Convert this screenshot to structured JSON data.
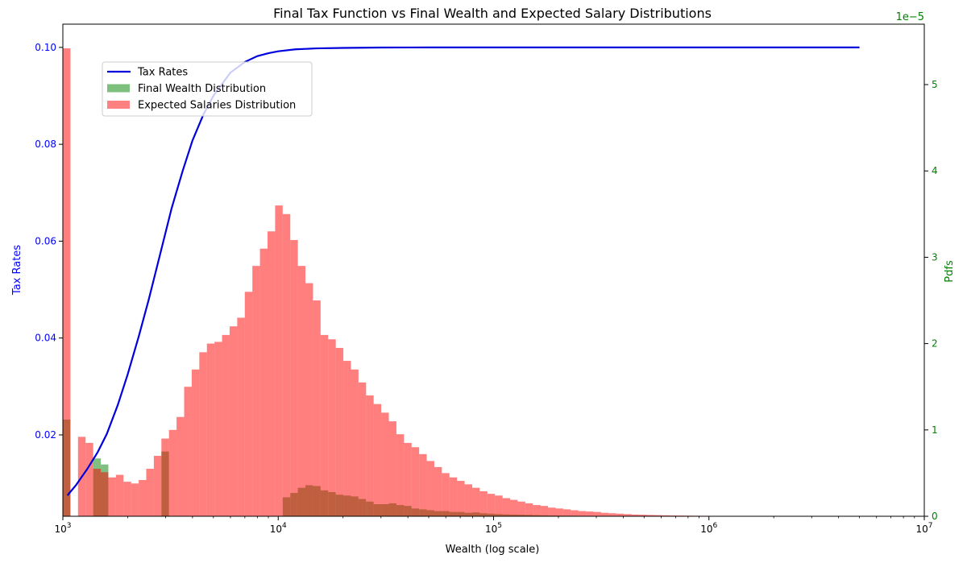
{
  "chart_data": {
    "type": "histogram-with-line",
    "title": "Final Tax Function vs Final Wealth and Expected Salary Distributions",
    "xlabel": "Wealth (log scale)",
    "ylabel_left": "Tax Rates",
    "ylabel_right": "Pdfs",
    "right_axis_multiplier": "1e−5",
    "x_scale": "log",
    "xlim": [
      1000,
      10000000
    ],
    "ylim_left": [
      0.0032,
      0.1048
    ],
    "ylim_right": [
      0,
      5.7
    ],
    "x_ticks": [
      {
        "value": 1000,
        "mantissa": "10",
        "exp": "3"
      },
      {
        "value": 10000,
        "mantissa": "10",
        "exp": "4"
      },
      {
        "value": 100000,
        "mantissa": "10",
        "exp": "5"
      },
      {
        "value": 1000000,
        "mantissa": "10",
        "exp": "6"
      },
      {
        "value": 10000000,
        "mantissa": "10",
        "exp": "7"
      }
    ],
    "y_left_ticks": [
      "0.02",
      "0.04",
      "0.06",
      "0.08",
      "0.10"
    ],
    "y_right_ticks": [
      "0",
      "1",
      "2",
      "3",
      "4",
      "5"
    ],
    "legend": {
      "placement": "upper-left",
      "items": [
        {
          "label": "Tax Rates",
          "kind": "line",
          "color": "#0000dd"
        },
        {
          "label": "Final Wealth Distribution",
          "kind": "patch",
          "color": "#7dbf7d"
        },
        {
          "label": "Expected Salaries Distribution",
          "kind": "patch",
          "color": "#ff8080"
        }
      ]
    },
    "colors": {
      "tax_line": "#0000dd",
      "wealth_fill": "rgba(0,128,0,0.5)",
      "salary_fill": "rgba(255,0,0,0.5)",
      "left_axis": "#0000ff",
      "right_axis": "#008000"
    },
    "tax_rates": {
      "name": "Tax Rates",
      "points": [
        [
          1050,
          0.0075
        ],
        [
          1150,
          0.0096
        ],
        [
          1300,
          0.013
        ],
        [
          1450,
          0.0164
        ],
        [
          1600,
          0.0202
        ],
        [
          1800,
          0.0262
        ],
        [
          2000,
          0.0325
        ],
        [
          2250,
          0.0403
        ],
        [
          2500,
          0.0478
        ],
        [
          2800,
          0.0565
        ],
        [
          3200,
          0.0668
        ],
        [
          3600,
          0.0745
        ],
        [
          4000,
          0.0808
        ],
        [
          4500,
          0.0862
        ],
        [
          5000,
          0.09
        ],
        [
          6000,
          0.0948
        ],
        [
          7000,
          0.097
        ],
        [
          8000,
          0.0982
        ],
        [
          9000,
          0.0988
        ],
        [
          10000,
          0.0992
        ],
        [
          12000,
          0.0996
        ],
        [
          15000,
          0.0998
        ],
        [
          20000,
          0.0999
        ],
        [
          30000,
          0.09998
        ],
        [
          50000,
          0.1
        ],
        [
          100000,
          0.1
        ],
        [
          1000000,
          0.1
        ],
        [
          5000000,
          0.1
        ]
      ]
    },
    "bins": {
      "count": 100,
      "log10_start": 3.0,
      "log10_end": 6.52,
      "wealth_pdf": [
        1.12,
        0,
        0,
        0,
        0.67,
        0.6,
        0,
        0,
        0,
        0,
        0,
        0,
        0,
        0.75,
        0,
        0,
        0,
        0,
        0,
        0,
        0,
        0,
        0,
        0,
        0,
        0,
        0,
        0,
        0,
        0.22,
        0.27,
        0.33,
        0.36,
        0.35,
        0.3,
        0.28,
        0.25,
        0.24,
        0.23,
        0.2,
        0.17,
        0.14,
        0.14,
        0.15,
        0.13,
        0.12,
        0.09,
        0.08,
        0.07,
        0.06,
        0.06,
        0.05,
        0.05,
        0.04,
        0.045,
        0.035,
        0.03,
        0.025,
        0.022,
        0.02,
        0.018,
        0.016,
        0.013,
        0.011,
        0.009,
        0.008,
        0.007,
        0.006,
        0.005,
        0.0045,
        0.004,
        0.0035,
        0.003,
        0.0025,
        0.002,
        0.0018,
        0.0015,
        0.0012,
        0.001,
        0.0008,
        0.0007,
        0.0006,
        0.0005,
        0.0004,
        0.0003,
        0.0003,
        0.0002,
        0.0002,
        0.0001,
        0.0001,
        0,
        0,
        0.0001,
        0,
        0,
        0,
        0,
        0,
        0,
        0
      ],
      "salary_pdf": [
        5.42,
        0,
        0.92,
        0.85,
        0.55,
        0.51,
        0.45,
        0.48,
        0.4,
        0.38,
        0.42,
        0.55,
        0.7,
        0.9,
        1.0,
        1.15,
        1.5,
        1.7,
        1.9,
        2.0,
        2.02,
        2.1,
        2.2,
        2.3,
        2.6,
        2.9,
        3.1,
        3.3,
        3.6,
        3.5,
        3.2,
        2.9,
        2.7,
        2.5,
        2.1,
        2.05,
        1.95,
        1.8,
        1.7,
        1.55,
        1.4,
        1.3,
        1.2,
        1.1,
        0.95,
        0.85,
        0.8,
        0.72,
        0.64,
        0.57,
        0.5,
        0.45,
        0.41,
        0.37,
        0.33,
        0.29,
        0.26,
        0.24,
        0.21,
        0.19,
        0.17,
        0.15,
        0.13,
        0.12,
        0.1,
        0.09,
        0.08,
        0.07,
        0.06,
        0.055,
        0.05,
        0.04,
        0.035,
        0.03,
        0.025,
        0.02,
        0.018,
        0.015,
        0.013,
        0.011,
        0.009,
        0.008,
        0.007,
        0.006,
        0.005,
        0.004,
        0.003,
        0.003,
        0.002,
        0.002,
        0.001,
        0.001,
        0.001,
        0.001,
        0,
        0,
        0,
        0,
        0,
        0
      ]
    }
  }
}
